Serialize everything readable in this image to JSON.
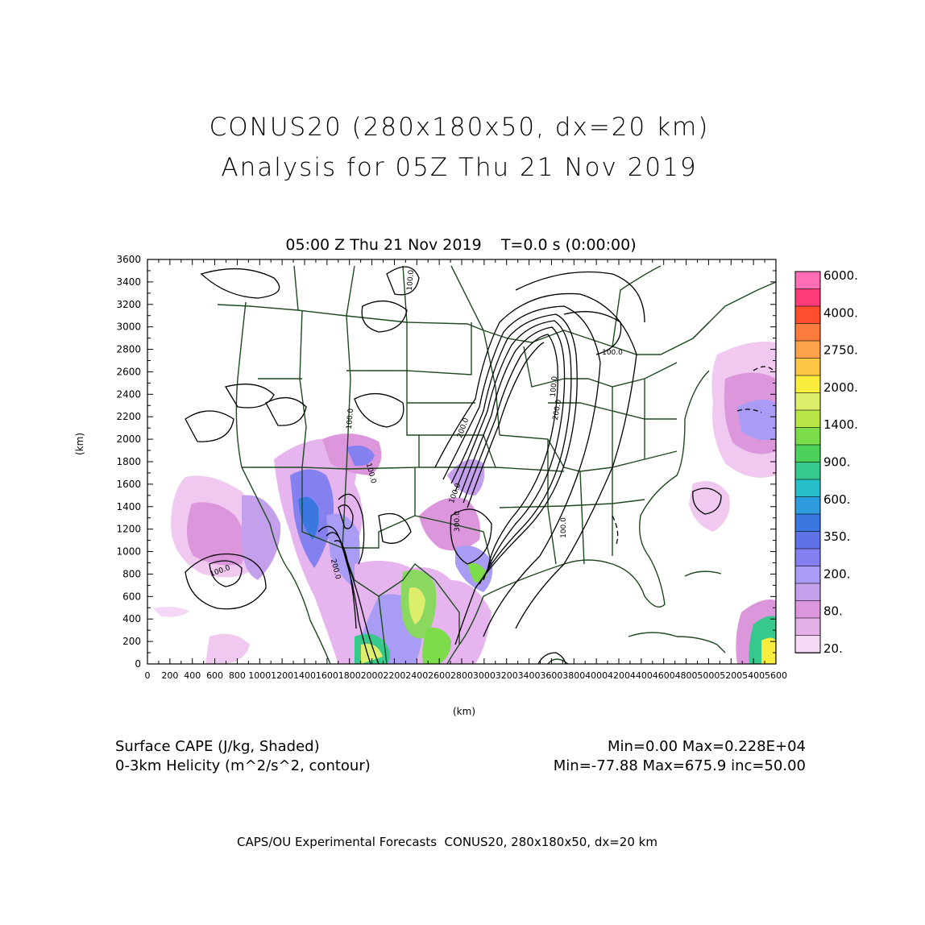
{
  "header": {
    "title_line1": "CONUS20 (280x180x50, dx=20 km)",
    "title_line2": "Analysis for 05Z Thu 21 Nov 2019",
    "subtitle": "05:00 Z Thu 21 Nov 2019    T=0.0 s (0:00:00)"
  },
  "axes": {
    "x_label": "(km)",
    "y_label": "(km)",
    "x_ticks": [
      "0",
      "200",
      "400",
      "600",
      "800",
      "1000",
      "1200",
      "1400",
      "1600",
      "1800",
      "2000",
      "2200",
      "2400",
      "2600",
      "2800",
      "3000",
      "3200",
      "3400",
      "3600",
      "3800",
      "4000",
      "4200",
      "4400",
      "4600",
      "4800",
      "5000",
      "5200",
      "5400",
      "5600"
    ],
    "y_ticks": [
      "0",
      "200",
      "400",
      "600",
      "800",
      "1000",
      "1200",
      "1400",
      "1600",
      "1800",
      "2000",
      "2200",
      "2400",
      "2600",
      "2800",
      "3000",
      "3200",
      "3400",
      "3600"
    ],
    "x_range": [
      0,
      5600
    ],
    "y_range": [
      0,
      3600
    ]
  },
  "colorbar": {
    "labels": [
      "6000.",
      "4000.",
      "2750.",
      "2000.",
      "1400.",
      "900.",
      "600.",
      "350.",
      "200.",
      "80.",
      "20."
    ],
    "colors": [
      "#ff6eb4",
      "#ff3c78",
      "#ff4e2e",
      "#fb7a3e",
      "#fda24a",
      "#fdc646",
      "#fcec3c",
      "#dcee6c",
      "#b8e646",
      "#7cdc4a",
      "#4cd25c",
      "#36c88c",
      "#28c0c8",
      "#2e9cdc",
      "#3a78e0",
      "#6072e8",
      "#8480f0",
      "#a89cf4",
      "#c4a0ec",
      "#dc96dc",
      "#e4b0e8",
      "#f4d8f6"
    ]
  },
  "contour_labels": [
    "100.0",
    "100.0",
    "100.0",
    "100.0",
    "100.0",
    "200.0",
    "200.0",
    "200.0",
    "300.0",
    "100.0",
    "100.0",
    "100.0"
  ],
  "footer": {
    "var1": "Surface CAPE (J/kg, Shaded)",
    "stats1": "Min=0.00 Max=0.228E+04",
    "var2": "0-3km Helicity (m^2/s^2, contour)",
    "stats2": "Min=-77.88 Max=675.9 inc=50.00",
    "credit": "CAPS/OU Experimental Forecasts  CONUS20, 280x180x50, dx=20 km"
  }
}
